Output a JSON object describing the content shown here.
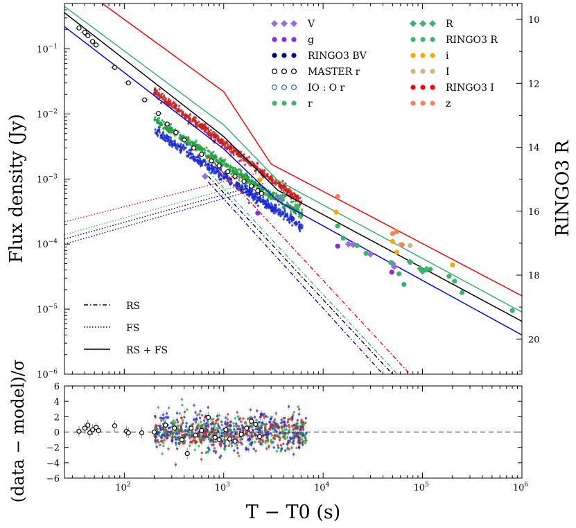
{
  "chart_data": {
    "type": "scatter",
    "main_panel": {
      "ylabel": "Flux density (Jy)",
      "right_ylabel": "RINGO3 R",
      "xscale": "log",
      "yscale": "log",
      "xlim": [
        25,
        1000000
      ],
      "ylim": [
        1e-06,
        0.5
      ],
      "right_ylim": [
        9.5,
        21.1
      ],
      "x_ticks": [
        {
          "value": 100,
          "base": "10",
          "exp": "2"
        },
        {
          "value": 1000,
          "base": "10",
          "exp": "3"
        },
        {
          "value": 10000,
          "base": "10",
          "exp": "4"
        },
        {
          "value": 100000,
          "base": "10",
          "exp": "5"
        },
        {
          "value": 1000000,
          "base": "10",
          "exp": "6"
        }
      ],
      "y_ticks": [
        {
          "value": 0.1,
          "base": "10",
          "exp": "−1"
        },
        {
          "value": 0.01,
          "base": "10",
          "exp": "−2"
        },
        {
          "value": 0.001,
          "base": "10",
          "exp": "−3"
        },
        {
          "value": 0.0001,
          "base": "10",
          "exp": "−4"
        },
        {
          "value": 1e-05,
          "base": "10",
          "exp": "−5"
        },
        {
          "value": 1e-06,
          "base": "10",
          "exp": "−6"
        }
      ],
      "right_ticks": [
        "10",
        "12",
        "14",
        "16",
        "18",
        "20"
      ],
      "model_lines": [
        {
          "name": "RINGO3 I",
          "color": "#ff0000",
          "points": [
            [
              60,
              0.5
            ],
            [
              1000,
              0.022
            ],
            [
              3000,
              0.0017
            ],
            [
              1000000,
              1.6e-05
            ]
          ]
        },
        {
          "name": "r",
          "color": "#3cb371",
          "points": [
            [
              25,
              0.45
            ],
            [
              1000,
              0.0068
            ],
            [
              3500,
              0.00095
            ],
            [
              1000000,
              9e-06
            ]
          ]
        },
        {
          "name": "MASTER r",
          "color": "#000000",
          "points": [
            [
              25,
              0.36
            ],
            [
              1000,
              0.0045
            ],
            [
              3500,
              0.00067
            ],
            [
              1000000,
              6.5e-06
            ]
          ]
        },
        {
          "name": "RINGO3 BV",
          "color": "#0000ff",
          "points": [
            [
              25,
              0.22
            ],
            [
              1000,
              0.0029
            ],
            [
              3500,
              0.00046
            ],
            [
              1000000,
              4e-06
            ]
          ]
        }
      ],
      "rs_lines": [
        {
          "color": "#0000ff",
          "points": [
            [
              700,
              0.0009
            ],
            [
              40000,
              1e-06
            ]
          ]
        },
        {
          "color": "#000000",
          "points": [
            [
              700,
              0.0011
            ],
            [
              50000,
              1e-06
            ]
          ]
        },
        {
          "color": "#3cb371",
          "points": [
            [
              700,
              0.0013
            ],
            [
              56000,
              1e-06
            ]
          ]
        },
        {
          "color": "#ff0000",
          "points": [
            [
              700,
              0.0022
            ],
            [
              75000,
              1e-06
            ]
          ]
        }
      ],
      "fs_lines": [
        {
          "color": "#0000ff",
          "points": [
            [
              25,
              0.0001
            ],
            [
              2500,
              0.00075
            ]
          ]
        },
        {
          "color": "#000000",
          "points": [
            [
              25,
              0.00012
            ],
            [
              2500,
              0.00085
            ]
          ]
        },
        {
          "color": "#3cb371",
          "points": [
            [
              25,
              0.00014
            ],
            [
              2500,
              0.001
            ]
          ]
        },
        {
          "color": "#ff0000",
          "points": [
            [
              25,
              0.00022
            ],
            [
              2500,
              0.0013
            ]
          ]
        }
      ],
      "master_r": [
        [
          35,
          0.21
        ],
        [
          40,
          0.18
        ],
        [
          43,
          0.16
        ],
        [
          48,
          0.13
        ],
        [
          52,
          0.115
        ],
        [
          80,
          0.052
        ],
        [
          110,
          0.03
        ],
        [
          160,
          0.0165
        ],
        [
          220,
          0.0102
        ],
        [
          270,
          0.007
        ],
        [
          330,
          0.0052
        ],
        [
          400,
          0.004
        ],
        [
          500,
          0.003
        ],
        [
          600,
          0.0024
        ],
        [
          750,
          0.0019
        ],
        [
          900,
          0.0016
        ],
        [
          1100,
          0.0013
        ],
        [
          1300,
          0.0011
        ],
        [
          1600,
          0.00092
        ],
        [
          1900,
          0.00078
        ],
        [
          2200,
          0.00066
        ],
        [
          2400,
          0.0006
        ]
      ],
      "V": [
        [
          650,
          0.0011
        ],
        [
          3700,
          0.00052
        ],
        [
          18000,
          0.0001
        ],
        [
          20000,
          9.8e-05
        ],
        [
          30000,
          7e-05
        ],
        [
          50000,
          5e-05
        ],
        [
          52000,
          4.5e-05
        ]
      ],
      "g": [
        [
          2200,
          0.0003
        ],
        [
          14000,
          9.3e-05
        ],
        [
          49000,
          3.7e-05
        ]
      ],
      "R": [
        [
          4000,
          0.00055
        ],
        [
          5500,
          0.00038
        ],
        [
          75000,
          5.3e-05
        ],
        [
          95000,
          4.2e-05
        ],
        [
          100000,
          3.8e-05
        ],
        [
          110000,
          4.1e-05
        ]
      ],
      "r_points": [
        [
          14000,
          0.00019
        ],
        [
          16000,
          0.000123
        ],
        [
          22000,
          9.5e-05
        ],
        [
          27000,
          7.2e-05
        ],
        [
          48000,
          5.2e-05
        ],
        [
          58000,
          3.5e-05
        ],
        [
          65000,
          2.4e-05
        ],
        [
          120000,
          4.1e-05
        ],
        [
          185000,
          3.2e-05
        ],
        [
          210000,
          2.7e-05
        ],
        [
          250000,
          1.8e-05
        ],
        [
          800000,
          9.5e-06
        ]
      ],
      "i": [
        [
          2300,
          0.00097
        ],
        [
          13500,
          0.00031
        ],
        [
          50000,
          0.00011
        ],
        [
          55000,
          7.5e-05
        ],
        [
          200000,
          4.8e-05
        ]
      ],
      "I_points": [
        [
          60000,
          9.8e-05
        ],
        [
          75000,
          9.5e-05
        ]
      ],
      "z": [
        [
          14000,
          0.00054
        ],
        [
          50000,
          0.000145
        ],
        [
          55000,
          0.000155
        ],
        [
          62000,
          9.8e-05
        ]
      ],
      "ringo_I_cloud": {
        "color": "#c22222",
        "t_start": 200,
        "t_end": 6200,
        "f_start": 0.022,
        "f_end": 0.00044
      },
      "ringo_R_cloud": {
        "color": "#22a040",
        "t_start": 200,
        "t_end": 6200,
        "f_start": 0.0082,
        "f_end": 0.00028
      },
      "ringo_BV_cloud": {
        "color": "#1a2ad0",
        "t_start": 200,
        "t_end": 6200,
        "f_start": 0.0055,
        "f_end": 0.00018
      },
      "legend_col1": [
        {
          "label": "V",
          "marker": "diamond",
          "color": "#9370db"
        },
        {
          "label": "g",
          "marker": "circle",
          "color": "#8a2be2"
        },
        {
          "label": "RINGO3  BV",
          "marker": "circle",
          "color": "#00008b"
        },
        {
          "label": "MASTER  r",
          "marker": "open-circle",
          "color": "#000000"
        },
        {
          "label": "IO : O  r",
          "marker": "open-circle",
          "color": "#1f77b4"
        },
        {
          "label": "r",
          "marker": "circle",
          "color": "#3cb371"
        }
      ],
      "legend_col2": [
        {
          "label": "R",
          "marker": "diamond",
          "color": "#3cb371"
        },
        {
          "label": "RINGO3  R",
          "marker": "circle",
          "color": "#3cb371"
        },
        {
          "label": "i",
          "marker": "circle",
          "color": "#ffa500"
        },
        {
          "label": "I",
          "marker": "circle",
          "color": "#d2b48c"
        },
        {
          "label": "RINGO3  I",
          "marker": "circle",
          "color": "#ff0000"
        },
        {
          "label": "z",
          "marker": "circle",
          "color": "#ff7f50"
        }
      ],
      "style_legend": [
        {
          "label": "RS",
          "style": "dashdot"
        },
        {
          "label": "FS",
          "style": "dotted"
        },
        {
          "label": "RS + FS",
          "style": "solid"
        }
      ]
    },
    "residual_panel": {
      "ylabel": "(data − model)/σ",
      "ylim": [
        -6,
        6
      ],
      "y_ticks": [
        "6",
        "4",
        "2",
        "0",
        "−2",
        "−4",
        "−6"
      ],
      "y_tick_values": [
        6,
        4,
        2,
        0,
        -2,
        -4,
        -6
      ],
      "master_residuals": [
        [
          35,
          0.1
        ],
        [
          40,
          0.5
        ],
        [
          43,
          0.9
        ],
        [
          45,
          -0.1
        ],
        [
          48,
          0.3
        ],
        [
          52,
          0.6
        ],
        [
          55,
          0.2
        ],
        [
          80,
          0.8
        ],
        [
          105,
          0.1
        ],
        [
          110,
          -0.1
        ],
        [
          150,
          -0.1
        ],
        [
          200,
          0.0
        ],
        [
          260,
          0.9
        ],
        [
          320,
          0.5
        ],
        [
          380,
          -1.0
        ],
        [
          430,
          -2.8
        ],
        [
          470,
          0.5
        ],
        [
          520,
          -0.4
        ],
        [
          600,
          0.2
        ],
        [
          700,
          1.9
        ],
        [
          820,
          -0.7
        ],
        [
          900,
          -1.0
        ],
        [
          1050,
          0.3
        ],
        [
          1150,
          -0.9
        ],
        [
          1300,
          -1.2
        ],
        [
          1500,
          -0.3
        ],
        [
          1700,
          0.5
        ],
        [
          1900,
          1.4
        ],
        [
          2100,
          1.0
        ],
        [
          2300,
          -0.6
        ]
      ]
    },
    "xlabel": "T − T0 (s)"
  }
}
